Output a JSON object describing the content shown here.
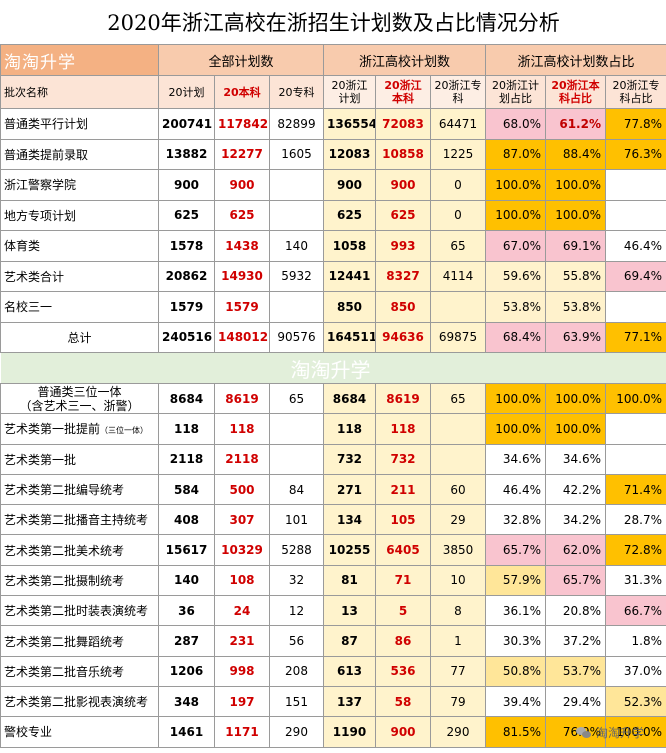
{
  "title": "2020年浙江高校在浙招生计划数及占比情况分析",
  "brand": "淘淘升学",
  "groups": {
    "all": "全部计划数",
    "zj": "浙江高校计划数",
    "ratio": "浙江高校计划数占比"
  },
  "columns": {
    "name": "批次名称",
    "c1": "20计划",
    "c2": "20本科",
    "c3": "20专科",
    "c4": "20浙江计划",
    "c5": "20浙江本科",
    "c6": "20浙江专科",
    "p1": "20浙江计划占比",
    "p2": "20浙江本科占比",
    "p3": "20浙江专科占比"
  },
  "rows_top": [
    {
      "name": "普通类平行计划",
      "v": [
        "200741",
        "117842",
        "82899",
        "136554",
        "72083",
        "64471",
        "68.0%",
        "61.2%",
        "77.8%"
      ],
      "hl": [
        "pink",
        "pink",
        "orange"
      ],
      "bold3": true
    },
    {
      "name": "普通类提前录取",
      "v": [
        "13882",
        "12277",
        "1605",
        "12083",
        "10858",
        "1225",
        "87.0%",
        "88.4%",
        "76.3%"
      ],
      "hl": [
        "orange",
        "orange",
        "orange"
      ]
    },
    {
      "name": "浙江警察学院",
      "v": [
        "900",
        "900",
        "",
        "900",
        "900",
        "0",
        "100.0%",
        "100.0%",
        ""
      ],
      "hl": [
        "orange",
        "orange",
        ""
      ]
    },
    {
      "name": "地方专项计划",
      "v": [
        "625",
        "625",
        "",
        "625",
        "625",
        "0",
        "100.0%",
        "100.0%",
        ""
      ],
      "hl": [
        "orange",
        "orange",
        ""
      ]
    },
    {
      "name": "体育类",
      "v": [
        "1578",
        "1438",
        "140",
        "1058",
        "993",
        "65",
        "67.0%",
        "69.1%",
        "46.4%"
      ],
      "hl": [
        "pink",
        "pink",
        ""
      ]
    },
    {
      "name": "艺术类合计",
      "v": [
        "20862",
        "14930",
        "5932",
        "12441",
        "8327",
        "4114",
        "59.6%",
        "55.8%",
        "69.4%"
      ],
      "hl": [
        "lightyellow",
        "lightyellow",
        "pink"
      ]
    },
    {
      "name": "名校三一",
      "v": [
        "1579",
        "1579",
        "",
        "850",
        "850",
        "",
        "53.8%",
        "53.8%",
        ""
      ],
      "hl": [
        "lightyellow",
        "lightyellow",
        ""
      ]
    },
    {
      "name": "总计",
      "v": [
        "240516",
        "148012",
        "90576",
        "164511",
        "94636",
        "69875",
        "68.4%",
        "63.9%",
        "77.1%"
      ],
      "hl": [
        "pink",
        "pink",
        "orange"
      ],
      "center": true
    }
  ],
  "rows_bottom": [
    {
      "name": "普通类三位一体",
      "name2": "（含艺术三一、浙警）",
      "v": [
        "8684",
        "8619",
        "65",
        "8684",
        "8619",
        "65",
        "100.0%",
        "100.0%",
        "100.0%"
      ],
      "hl": [
        "orange",
        "orange",
        "orange"
      ]
    },
    {
      "name": "艺术类第一批提前",
      "note": "（三位一体）",
      "v": [
        "118",
        "118",
        "",
        "118",
        "118",
        "",
        "100.0%",
        "100.0%",
        ""
      ],
      "hl": [
        "orange",
        "orange",
        ""
      ]
    },
    {
      "name": "艺术类第一批",
      "v": [
        "2118",
        "2118",
        "",
        "732",
        "732",
        "",
        "34.6%",
        "34.6%",
        ""
      ],
      "hl": [
        "",
        "",
        ""
      ]
    },
    {
      "name": "艺术类第二批编导统考",
      "v": [
        "584",
        "500",
        "84",
        "271",
        "211",
        "60",
        "46.4%",
        "42.2%",
        "71.4%"
      ],
      "hl": [
        "",
        "",
        "orange"
      ]
    },
    {
      "name": "艺术类第二批播音主持统考",
      "v": [
        "408",
        "307",
        "101",
        "134",
        "105",
        "29",
        "32.8%",
        "34.2%",
        "28.7%"
      ],
      "hl": [
        "",
        "",
        ""
      ]
    },
    {
      "name": "艺术类第二批美术统考",
      "v": [
        "15617",
        "10329",
        "5288",
        "10255",
        "6405",
        "3850",
        "65.7%",
        "62.0%",
        "72.8%"
      ],
      "hl": [
        "pink",
        "pink",
        "orange"
      ]
    },
    {
      "name": "艺术类第二批摄制统考",
      "v": [
        "140",
        "108",
        "32",
        "81",
        "71",
        "10",
        "57.9%",
        "65.7%",
        "31.3%"
      ],
      "hl": [
        "yellow",
        "pink",
        ""
      ]
    },
    {
      "name": "艺术类第二批时装表演统考",
      "v": [
        "36",
        "24",
        "12",
        "13",
        "5",
        "8",
        "36.1%",
        "20.8%",
        "66.7%"
      ],
      "hl": [
        "",
        "",
        "pink"
      ]
    },
    {
      "name": "艺术类第二批舞蹈统考",
      "v": [
        "287",
        "231",
        "56",
        "87",
        "86",
        "1",
        "30.3%",
        "37.2%",
        "1.8%"
      ],
      "hl": [
        "",
        "",
        ""
      ]
    },
    {
      "name": "艺术类第二批音乐统考",
      "v": [
        "1206",
        "998",
        "208",
        "613",
        "536",
        "77",
        "50.8%",
        "53.7%",
        "37.0%"
      ],
      "hl": [
        "yellow",
        "yellow",
        ""
      ]
    },
    {
      "name": "艺术类第二批影视表演统考",
      "v": [
        "348",
        "197",
        "151",
        "137",
        "58",
        "79",
        "39.4%",
        "29.4%",
        "52.3%"
      ],
      "hl": [
        "",
        "",
        "yellow"
      ]
    },
    {
      "name": "警校专业",
      "v": [
        "1461",
        "1171",
        "290",
        "1190",
        "900",
        "290",
        "81.5%",
        "76.9%",
        "100.0%"
      ],
      "hl": [
        "orange",
        "orange",
        "orange"
      ]
    }
  ],
  "footer_wm": "淘淘升学"
}
